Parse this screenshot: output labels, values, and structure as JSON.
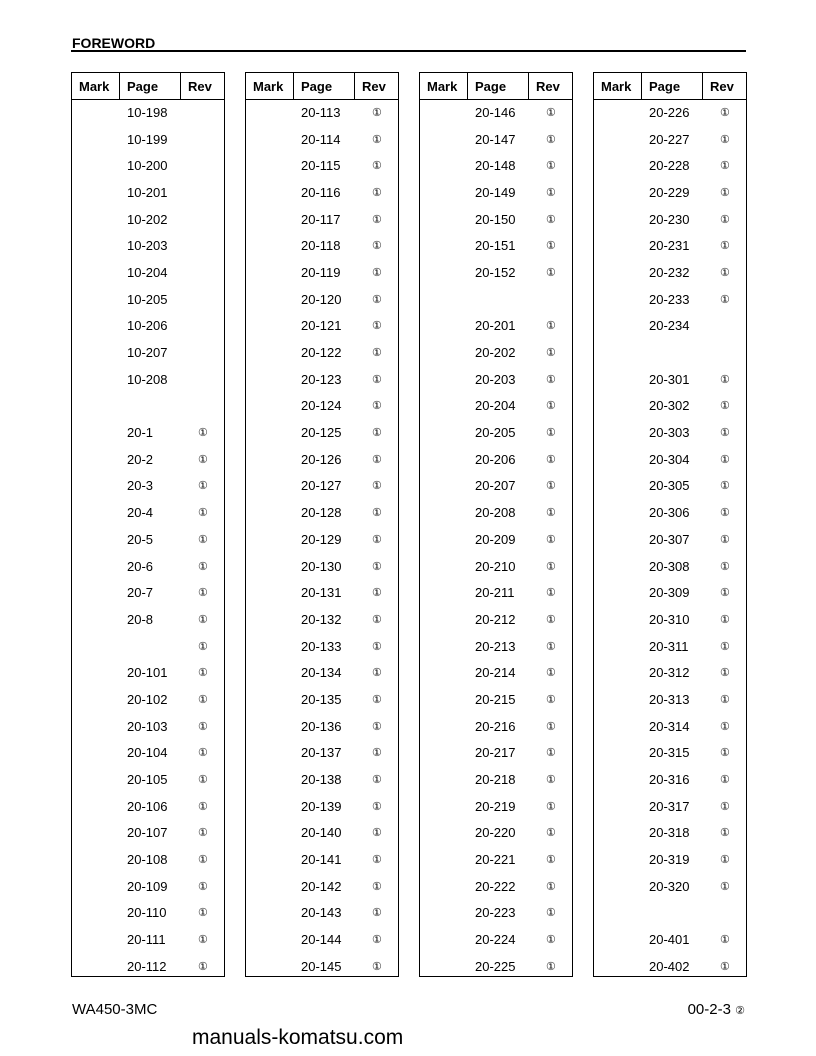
{
  "header": {
    "title": "FOREWORD"
  },
  "columns_labels": {
    "mark": "Mark",
    "page": "Page",
    "rev": "Rev"
  },
  "rev_symbol": "①",
  "tables": [
    {
      "rows": [
        {
          "page": "10-198",
          "rev": ""
        },
        {
          "page": "10-199",
          "rev": ""
        },
        {
          "page": "10-200",
          "rev": ""
        },
        {
          "page": "10-201",
          "rev": ""
        },
        {
          "page": "10-202",
          "rev": ""
        },
        {
          "page": "10-203",
          "rev": ""
        },
        {
          "page": "10-204",
          "rev": ""
        },
        {
          "page": "10-205",
          "rev": ""
        },
        {
          "page": "10-206",
          "rev": ""
        },
        {
          "page": "10-207",
          "rev": ""
        },
        {
          "page": "10-208",
          "rev": ""
        },
        {
          "page": "",
          "rev": ""
        },
        {
          "page": "20-1",
          "rev": "①"
        },
        {
          "page": "20-2",
          "rev": "①"
        },
        {
          "page": "20-3",
          "rev": "①"
        },
        {
          "page": "20-4",
          "rev": "①"
        },
        {
          "page": "20-5",
          "rev": "①"
        },
        {
          "page": "20-6",
          "rev": "①"
        },
        {
          "page": "20-7",
          "rev": "①"
        },
        {
          "page": "20-8",
          "rev": "①"
        },
        {
          "page": "",
          "rev": "①"
        },
        {
          "page": "20-101",
          "rev": "①"
        },
        {
          "page": "20-102",
          "rev": "①"
        },
        {
          "page": "20-103",
          "rev": "①"
        },
        {
          "page": "20-104",
          "rev": "①"
        },
        {
          "page": "20-105",
          "rev": "①"
        },
        {
          "page": "20-106",
          "rev": "①"
        },
        {
          "page": "20-107",
          "rev": "①"
        },
        {
          "page": "20-108",
          "rev": "①"
        },
        {
          "page": "20-109",
          "rev": "①"
        },
        {
          "page": "20-110",
          "rev": "①"
        },
        {
          "page": "20-111",
          "rev": "①"
        },
        {
          "page": "20-112",
          "rev": "①"
        }
      ]
    },
    {
      "rows": [
        {
          "page": "20-113",
          "rev": "①"
        },
        {
          "page": "20-114",
          "rev": "①"
        },
        {
          "page": "20-115",
          "rev": "①"
        },
        {
          "page": "20-116",
          "rev": "①"
        },
        {
          "page": "20-117",
          "rev": "①"
        },
        {
          "page": "20-118",
          "rev": "①"
        },
        {
          "page": "20-119",
          "rev": "①"
        },
        {
          "page": "20-120",
          "rev": "①"
        },
        {
          "page": "20-121",
          "rev": "①"
        },
        {
          "page": "20-122",
          "rev": "①"
        },
        {
          "page": "20-123",
          "rev": "①"
        },
        {
          "page": "20-124",
          "rev": "①"
        },
        {
          "page": "20-125",
          "rev": "①"
        },
        {
          "page": "20-126",
          "rev": "①"
        },
        {
          "page": "20-127",
          "rev": "①"
        },
        {
          "page": "20-128",
          "rev": "①"
        },
        {
          "page": "20-129",
          "rev": "①"
        },
        {
          "page": "20-130",
          "rev": "①"
        },
        {
          "page": "20-131",
          "rev": "①"
        },
        {
          "page": "20-132",
          "rev": "①"
        },
        {
          "page": "20-133",
          "rev": "①"
        },
        {
          "page": "20-134",
          "rev": "①"
        },
        {
          "page": "20-135",
          "rev": "①"
        },
        {
          "page": "20-136",
          "rev": "①"
        },
        {
          "page": "20-137",
          "rev": "①"
        },
        {
          "page": "20-138",
          "rev": "①"
        },
        {
          "page": "20-139",
          "rev": "①"
        },
        {
          "page": "20-140",
          "rev": "①"
        },
        {
          "page": "20-141",
          "rev": "①"
        },
        {
          "page": "20-142",
          "rev": "①"
        },
        {
          "page": "20-143",
          "rev": "①"
        },
        {
          "page": "20-144",
          "rev": "①"
        },
        {
          "page": "20-145",
          "rev": "①"
        }
      ]
    },
    {
      "rows": [
        {
          "page": "20-146",
          "rev": "①"
        },
        {
          "page": "20-147",
          "rev": "①"
        },
        {
          "page": "20-148",
          "rev": "①"
        },
        {
          "page": "20-149",
          "rev": "①"
        },
        {
          "page": "20-150",
          "rev": "①"
        },
        {
          "page": "20-151",
          "rev": "①"
        },
        {
          "page": "20-152",
          "rev": "①"
        },
        {
          "page": "",
          "rev": ""
        },
        {
          "page": "20-201",
          "rev": "①"
        },
        {
          "page": "20-202",
          "rev": "①"
        },
        {
          "page": "20-203",
          "rev": "①"
        },
        {
          "page": "20-204",
          "rev": "①"
        },
        {
          "page": "20-205",
          "rev": "①"
        },
        {
          "page": "20-206",
          "rev": "①"
        },
        {
          "page": "20-207",
          "rev": "①"
        },
        {
          "page": "20-208",
          "rev": "①"
        },
        {
          "page": "20-209",
          "rev": "①"
        },
        {
          "page": "20-210",
          "rev": "①"
        },
        {
          "page": "20-211",
          "rev": "①"
        },
        {
          "page": "20-212",
          "rev": "①"
        },
        {
          "page": "20-213",
          "rev": "①"
        },
        {
          "page": "20-214",
          "rev": "①"
        },
        {
          "page": "20-215",
          "rev": "①"
        },
        {
          "page": "20-216",
          "rev": "①"
        },
        {
          "page": "20-217",
          "rev": "①"
        },
        {
          "page": "20-218",
          "rev": "①"
        },
        {
          "page": "20-219",
          "rev": "①"
        },
        {
          "page": "20-220",
          "rev": "①"
        },
        {
          "page": "20-221",
          "rev": "①"
        },
        {
          "page": "20-222",
          "rev": "①"
        },
        {
          "page": "20-223",
          "rev": "①"
        },
        {
          "page": "20-224",
          "rev": "①"
        },
        {
          "page": "20-225",
          "rev": "①"
        }
      ]
    },
    {
      "rows": [
        {
          "page": "20-226",
          "rev": "①"
        },
        {
          "page": "20-227",
          "rev": "①"
        },
        {
          "page": "20-228",
          "rev": "①"
        },
        {
          "page": "20-229",
          "rev": "①"
        },
        {
          "page": "20-230",
          "rev": "①"
        },
        {
          "page": "20-231",
          "rev": "①"
        },
        {
          "page": "20-232",
          "rev": "①"
        },
        {
          "page": "20-233",
          "rev": "①"
        },
        {
          "page": "20-234",
          "rev": ""
        },
        {
          "page": "",
          "rev": ""
        },
        {
          "page": "20-301",
          "rev": "①"
        },
        {
          "page": "20-302",
          "rev": "①"
        },
        {
          "page": "20-303",
          "rev": "①"
        },
        {
          "page": "20-304",
          "rev": "①"
        },
        {
          "page": "20-305",
          "rev": "①"
        },
        {
          "page": "20-306",
          "rev": "①"
        },
        {
          "page": "20-307",
          "rev": "①"
        },
        {
          "page": "20-308",
          "rev": "①"
        },
        {
          "page": "20-309",
          "rev": "①"
        },
        {
          "page": "20-310",
          "rev": "①"
        },
        {
          "page": "20-311",
          "rev": "①"
        },
        {
          "page": "20-312",
          "rev": "①"
        },
        {
          "page": "20-313",
          "rev": "①"
        },
        {
          "page": "20-314",
          "rev": "①"
        },
        {
          "page": "20-315",
          "rev": "①"
        },
        {
          "page": "20-316",
          "rev": "①"
        },
        {
          "page": "20-317",
          "rev": "①"
        },
        {
          "page": "20-318",
          "rev": "①"
        },
        {
          "page": "20-319",
          "rev": "①"
        },
        {
          "page": "20-320",
          "rev": "①"
        },
        {
          "page": "",
          "rev": ""
        },
        {
          "page": "20-401",
          "rev": "①"
        },
        {
          "page": "20-402",
          "rev": "①"
        }
      ]
    }
  ],
  "watermark": "manuals-komatsu.com",
  "footer": {
    "model": "WA450-3MC",
    "page_number": "00-2-3",
    "revision_symbol": "②"
  }
}
